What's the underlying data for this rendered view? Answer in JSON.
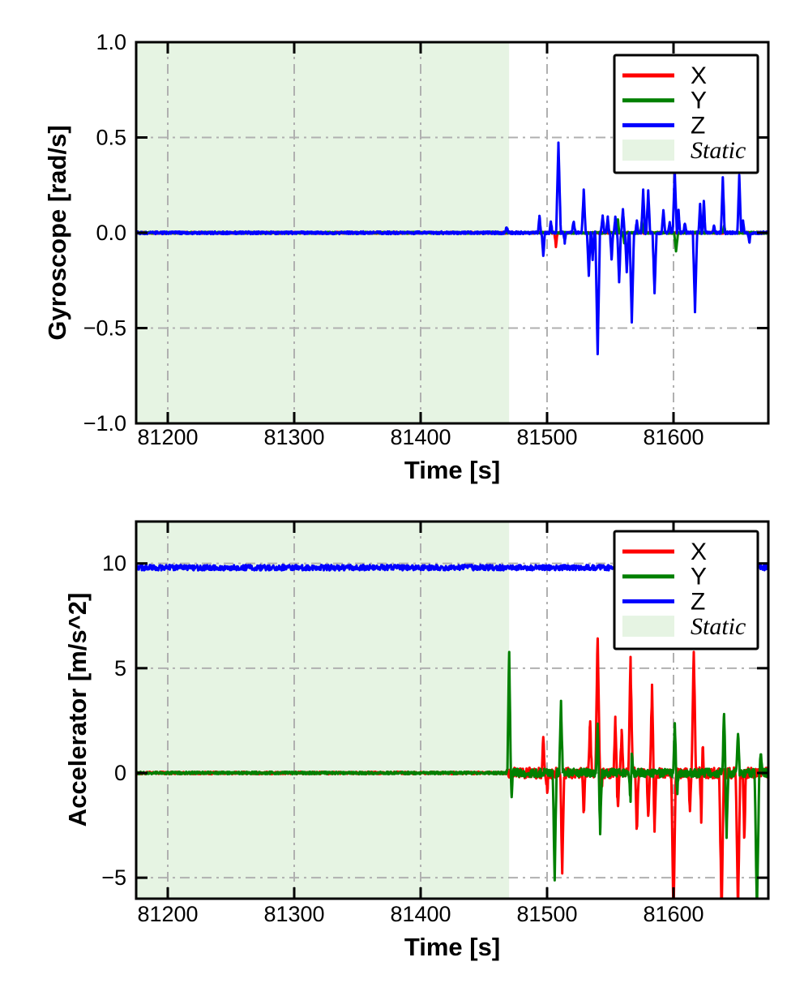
{
  "style": {
    "background": "#ffffff",
    "spine_color": "#000000",
    "grid_color": "#b0b0b0",
    "grid_dash": "dash-dot",
    "static_fill": "#e6f4e3",
    "legend_bg": "#ffffff",
    "legend_border": "#000000"
  },
  "chart_data": [
    {
      "type": "line",
      "title": "",
      "xlabel": "Time [s]",
      "ylabel": "Gyroscope [rad/s]",
      "xlim": [
        81175,
        81675
      ],
      "ylim": [
        -1,
        1
      ],
      "xticks": [
        81200,
        81300,
        81400,
        81500,
        81600
      ],
      "xtick_labels": [
        "81200",
        "81300",
        "81400",
        "81500",
        "81600"
      ],
      "yticks": [
        1.0,
        0.5,
        0.0,
        -0.5,
        -1.0
      ],
      "ytick_labels": [
        "1.0",
        "0.5",
        "0.0",
        "−0.5",
        "−1.0"
      ],
      "grid": true,
      "legend_position": "upper right",
      "static_region": {
        "label": "Static",
        "t_start": 81175,
        "t_end": 81470
      },
      "series": [
        {
          "name": "X",
          "color": "#ff0000",
          "baseline": 0,
          "noise": [
            [
              81175,
              81675,
              0.005
            ]
          ],
          "peaks": [
            [
              81507,
              -0.07,
              1.3
            ]
          ]
        },
        {
          "name": "Y",
          "color": "#008000",
          "baseline": 0,
          "noise": [
            [
              81175,
              81675,
              0.005
            ]
          ],
          "peaks": [
            [
              81548,
              0.06,
              1.2
            ],
            [
              81556,
              0.07,
              1.2
            ],
            [
              81561,
              -0.05,
              1.0
            ],
            [
              81575,
              0.06,
              1.2
            ],
            [
              81602,
              -0.1,
              1.5
            ],
            [
              81640,
              0.04,
              1.0
            ]
          ]
        },
        {
          "name": "Z",
          "color": "#0000ff",
          "baseline": 0,
          "noise": [
            [
              81175,
              81675,
              0.007
            ]
          ],
          "peaks": [
            [
              81468,
              0.03,
              1.5
            ],
            [
              81494,
              0.09,
              1.2
            ],
            [
              81497,
              -0.12,
              1.3
            ],
            [
              81503,
              0.06,
              1.2
            ],
            [
              81509,
              0.47,
              1.8
            ],
            [
              81514,
              -0.05,
              1.0
            ],
            [
              81521,
              0.06,
              1.5
            ],
            [
              81529,
              0.22,
              1.6
            ],
            [
              81533,
              -0.22,
              1.4
            ],
            [
              81536,
              -0.14,
              1.2
            ],
            [
              81540,
              -0.64,
              1.8
            ],
            [
              81544,
              0.09,
              1.4
            ],
            [
              81548,
              0.08,
              1.2
            ],
            [
              81551,
              -0.14,
              1.2
            ],
            [
              81554,
              0.08,
              1.2
            ],
            [
              81557,
              -0.26,
              1.4
            ],
            [
              81560,
              0.13,
              1.3
            ],
            [
              81563,
              -0.21,
              1.3
            ],
            [
              81567,
              -0.47,
              1.7
            ],
            [
              81571,
              0.06,
              1.2
            ],
            [
              81576,
              0.22,
              1.5
            ],
            [
              81580,
              0.22,
              1.5
            ],
            [
              81585,
              -0.31,
              1.6
            ],
            [
              81592,
              0.12,
              1.4
            ],
            [
              81597,
              0.05,
              1.2
            ],
            [
              81601,
              0.32,
              1.6
            ],
            [
              81604,
              0.12,
              1.2
            ],
            [
              81609,
              0.05,
              1.2
            ],
            [
              81617,
              -0.41,
              1.7
            ],
            [
              81621,
              0.15,
              1.2
            ],
            [
              81624,
              0.17,
              1.2
            ],
            [
              81632,
              0.04,
              1.2
            ],
            [
              81639,
              0.29,
              1.5
            ],
            [
              81652,
              0.3,
              1.5
            ],
            [
              81655,
              0.06,
              1.2
            ],
            [
              81660,
              -0.05,
              1.2
            ]
          ]
        }
      ]
    },
    {
      "type": "line",
      "title": "",
      "xlabel": "Time [s]",
      "ylabel": "Accelerator [m/s^2]",
      "xlim": [
        81175,
        81675
      ],
      "ylim": [
        -6,
        12
      ],
      "xticks": [
        81200,
        81300,
        81400,
        81500,
        81600
      ],
      "xtick_labels": [
        "81200",
        "81300",
        "81400",
        "81500",
        "81600"
      ],
      "yticks": [
        10,
        5,
        0,
        -5
      ],
      "ytick_labels": [
        "10",
        "5",
        "0",
        "−5"
      ],
      "grid": true,
      "legend_position": "upper right",
      "static_region": {
        "label": "Static",
        "t_start": 81175,
        "t_end": 81470
      },
      "series": [
        {
          "name": "X",
          "color": "#ff0000",
          "baseline": 0,
          "noise": [
            [
              81175,
              81468,
              0.06
            ],
            [
              81468,
              81675,
              0.26
            ]
          ],
          "peaks": [
            [
              81497,
              1.9,
              1.2
            ],
            [
              81500,
              -0.9,
              1.2
            ],
            [
              81512,
              -4.9,
              1.5
            ],
            [
              81529,
              -1.9,
              1.4
            ],
            [
              81534,
              2.5,
              1.4
            ],
            [
              81540,
              6.6,
              1.7
            ],
            [
              81543,
              -0.8,
              1.2
            ],
            [
              81554,
              2.5,
              1.4
            ],
            [
              81556,
              -1.7,
              1.2
            ],
            [
              81559,
              2.1,
              1.2
            ],
            [
              81566,
              5.3,
              1.7
            ],
            [
              81571,
              -2.8,
              1.4
            ],
            [
              81580,
              -2.3,
              1.2
            ],
            [
              81583,
              4.0,
              1.6
            ],
            [
              81585,
              -2.8,
              1.2
            ],
            [
              81600,
              -6.8,
              1.8
            ],
            [
              81613,
              -1.9,
              1.2
            ],
            [
              81616,
              6.0,
              1.7
            ],
            [
              81622,
              -2.3,
              1.2
            ],
            [
              81623,
              1.5,
              1.0
            ],
            [
              81638,
              -6.8,
              1.8
            ],
            [
              81651,
              -6.8,
              1.8
            ],
            [
              81656,
              -3.3,
              1.3
            ]
          ]
        },
        {
          "name": "Y",
          "color": "#008000",
          "baseline": 0,
          "noise": [
            [
              81175,
              81468,
              0.06
            ],
            [
              81468,
              81675,
              0.2
            ]
          ],
          "peaks": [
            [
              81470,
              5.8,
              1.4
            ],
            [
              81472,
              -1.0,
              1.0
            ],
            [
              81506,
              -5.1,
              1.5
            ],
            [
              81511,
              3.5,
              1.4
            ],
            [
              81540,
              2.3,
              1.4
            ],
            [
              81542,
              -2.8,
              1.4
            ],
            [
              81566,
              -1.5,
              1.2
            ],
            [
              81567,
              1.1,
              1.2
            ],
            [
              81601,
              2.3,
              1.3
            ],
            [
              81603,
              -0.9,
              1.2
            ],
            [
              81640,
              2.9,
              1.4
            ],
            [
              81642,
              -2.9,
              1.4
            ],
            [
              81651,
              2.0,
              1.3
            ],
            [
              81666,
              -6.8,
              1.8
            ],
            [
              81669,
              0.9,
              1.2
            ]
          ]
        },
        {
          "name": "Z",
          "color": "#0000ff",
          "baseline": 9.8,
          "noise": [
            [
              81175,
              81675,
              0.13
            ]
          ],
          "peaks": []
        }
      ]
    }
  ],
  "legend": {
    "labels": [
      "X",
      "Y",
      "Z",
      "Static"
    ]
  }
}
